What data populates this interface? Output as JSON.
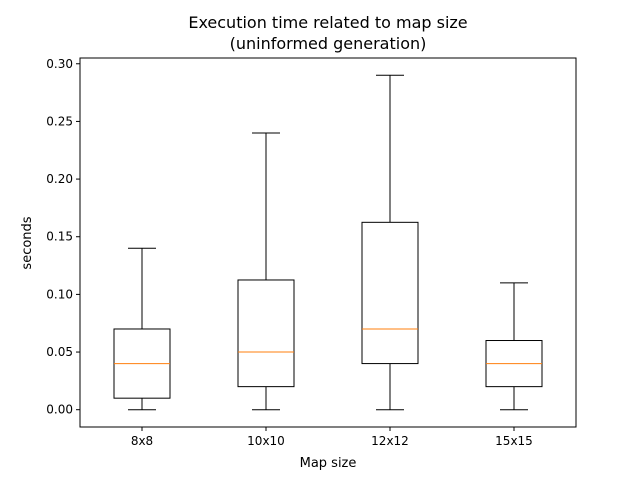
{
  "chart_data": {
    "type": "box",
    "title": "Execution time related to map size",
    "subtitle": "(uninformed generation)",
    "xlabel": "Map size",
    "ylabel": "seconds",
    "ylim": [
      -0.015,
      0.305
    ],
    "yticks": [
      0.0,
      0.05,
      0.1,
      0.15,
      0.2,
      0.25,
      0.3
    ],
    "ytick_labels": [
      "0.00",
      "0.05",
      "0.10",
      "0.15",
      "0.20",
      "0.25",
      "0.30"
    ],
    "categories": [
      "8x8",
      "10x10",
      "12x12",
      "15x15"
    ],
    "boxes": [
      {
        "category": "8x8",
        "whisker_low": 0.0,
        "q1": 0.01,
        "median": 0.04,
        "q3": 0.07,
        "whisker_high": 0.14
      },
      {
        "category": "10x10",
        "whisker_low": 0.0,
        "q1": 0.02,
        "median": 0.05,
        "q3": 0.1125,
        "whisker_high": 0.24
      },
      {
        "category": "12x12",
        "whisker_low": 0.0,
        "q1": 0.04,
        "median": 0.07,
        "q3": 0.1625,
        "whisker_high": 0.29
      },
      {
        "category": "15x15",
        "whisker_low": 0.0,
        "q1": 0.02,
        "median": 0.04,
        "q3": 0.06,
        "whisker_high": 0.11
      }
    ],
    "grid": false,
    "colors": {
      "box": "#000000",
      "median": "#ff7f0e",
      "axes": "#000000"
    }
  }
}
